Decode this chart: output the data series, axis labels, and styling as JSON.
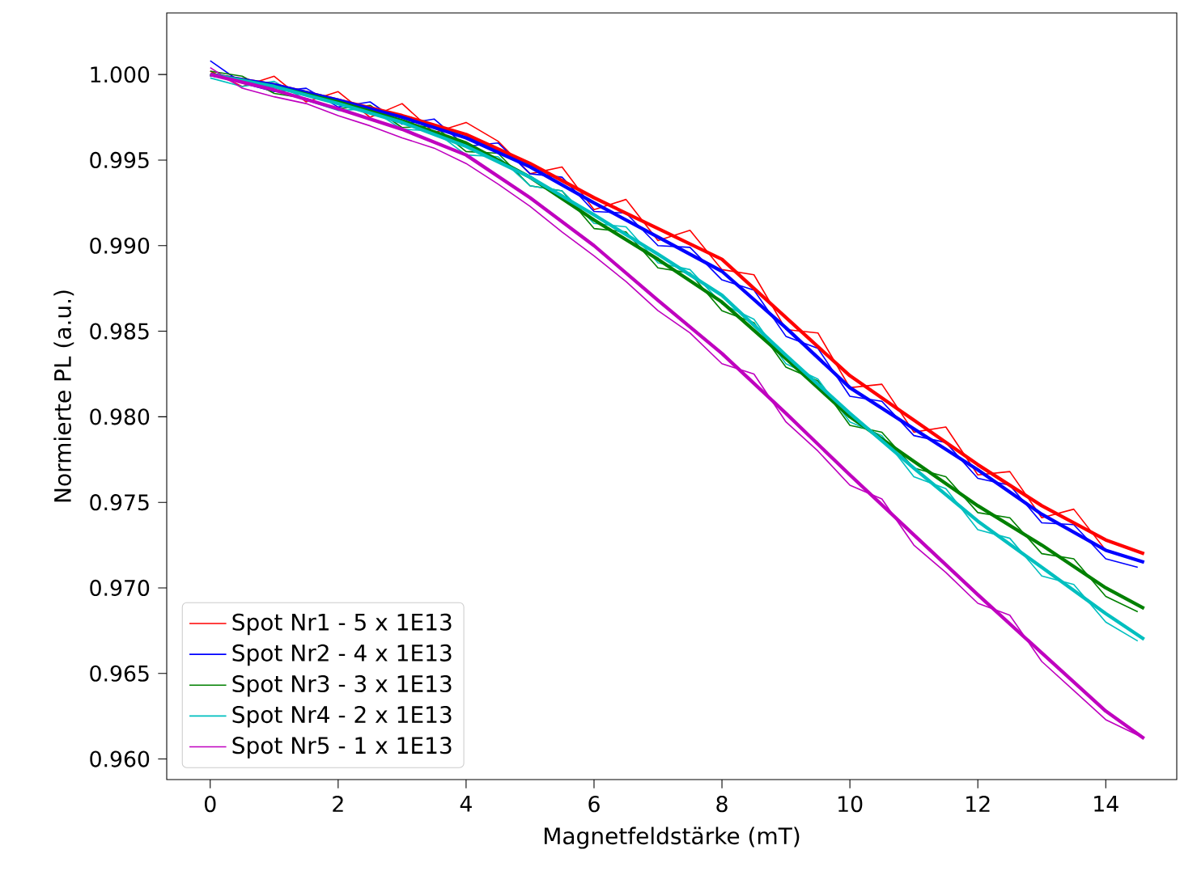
{
  "chart_data": {
    "type": "line",
    "xlabel": "Magnetfeldstärke (mT)",
    "ylabel": "Normierte PL (a.u.)",
    "xlim": [
      -0.68,
      15.11
    ],
    "ylim": [
      0.9588,
      1.0036
    ],
    "xticks": [
      0,
      2,
      4,
      6,
      8,
      10,
      12,
      14
    ],
    "yticks": [
      {
        "value": 0.96,
        "label": "0.960"
      },
      {
        "value": 0.965,
        "label": "0.965"
      },
      {
        "value": 0.97,
        "label": "0.970"
      },
      {
        "value": 0.975,
        "label": "0.975"
      },
      {
        "value": 0.98,
        "label": "0.980"
      },
      {
        "value": 0.985,
        "label": "0.985"
      },
      {
        "value": 0.99,
        "label": "0.990"
      },
      {
        "value": 0.995,
        "label": "0.995"
      },
      {
        "value": 1.0,
        "label": "1.000"
      }
    ],
    "legend": "bottom left",
    "grid": false,
    "x": [
      0,
      0.5,
      1,
      1.5,
      2,
      2.5,
      3,
      3.5,
      4,
      4.5,
      5,
      5.5,
      6,
      6.5,
      7,
      7.5,
      8,
      8.5,
      9,
      9.5,
      10,
      10.5,
      11,
      11.5,
      12,
      12.5,
      13,
      13.5,
      14,
      14.5
    ],
    "series": [
      {
        "name": "Spot Nr1 - 5 x 1E13",
        "color": "#ff0000",
        "values": [
          1.0002,
          0.9993,
          0.9999,
          0.9984,
          0.999,
          0.9975,
          0.9983,
          0.9966,
          0.9972,
          0.9961,
          0.9942,
          0.9946,
          0.9921,
          0.9927,
          0.9903,
          0.9909,
          0.9886,
          0.9883,
          0.9851,
          0.9849,
          0.9817,
          0.9819,
          0.9791,
          0.9794,
          0.9766,
          0.9768,
          0.9741,
          0.9746,
          0.9722,
          0.9716
        ]
      },
      {
        "name": "Spot Nr2 - 4 x 1E13",
        "color": "#0000ff",
        "values": [
          1.0008,
          0.9995,
          0.999,
          0.9992,
          0.9981,
          0.9984,
          0.9971,
          0.9974,
          0.9958,
          0.996,
          0.9942,
          0.994,
          0.992,
          0.9919,
          0.99,
          0.9899,
          0.988,
          0.9874,
          0.9847,
          0.984,
          0.9812,
          0.9809,
          0.9789,
          0.9785,
          0.9764,
          0.976,
          0.9738,
          0.9737,
          0.9717,
          0.9712
        ]
      },
      {
        "name": "Spot Nr3 - 3 x 1E13",
        "color": "#008000",
        "values": [
          1.0002,
          0.9999,
          0.9989,
          0.9986,
          0.998,
          0.9982,
          0.9969,
          0.997,
          0.9955,
          0.9954,
          0.9935,
          0.9932,
          0.991,
          0.9908,
          0.9887,
          0.9884,
          0.9862,
          0.9855,
          0.9829,
          0.9821,
          0.9795,
          0.9791,
          0.977,
          0.9765,
          0.9744,
          0.9741,
          0.972,
          0.9717,
          0.9695,
          0.9686
        ]
      },
      {
        "name": "Spot Nr4 - 2 x 1E13",
        "color": "#00bfbf",
        "values": [
          0.9998,
          0.9993,
          0.9996,
          0.9985,
          0.9979,
          0.998,
          0.9968,
          0.9967,
          0.9953,
          0.9952,
          0.9935,
          0.9932,
          0.9913,
          0.9911,
          0.989,
          0.9886,
          0.9866,
          0.9857,
          0.9831,
          0.9822,
          0.9797,
          0.9789,
          0.9765,
          0.9758,
          0.9734,
          0.9729,
          0.9707,
          0.9702,
          0.968,
          0.9669
        ]
      },
      {
        "name": "Spot Nr5 - 1 x 1E13",
        "color": "#bf00bf",
        "values": [
          1.0004,
          0.9992,
          0.9987,
          0.9983,
          0.9976,
          0.997,
          0.9963,
          0.9957,
          0.9948,
          0.9936,
          0.9923,
          0.9908,
          0.9894,
          0.9879,
          0.9862,
          0.9849,
          0.9831,
          0.9825,
          0.9797,
          0.978,
          0.976,
          0.9752,
          0.9725,
          0.9709,
          0.9691,
          0.9684,
          0.9657,
          0.964,
          0.9623,
          0.9614
        ]
      },
      {
        "type": "line",
        "color": "#ff0000",
        "x": [
          0,
          1,
          2,
          3,
          4,
          5,
          6,
          7,
          8,
          9,
          10,
          11,
          12,
          13,
          14,
          14.6
        ],
        "values": [
          1.0,
          0.9994,
          0.9985,
          0.9976,
          0.9965,
          0.9948,
          0.9928,
          0.991,
          0.9892,
          0.9858,
          0.9824,
          0.9798,
          0.9772,
          0.9748,
          0.9728,
          0.972
        ]
      },
      {
        "type": "line",
        "color": "#0000ff",
        "x": [
          0,
          1,
          2,
          3,
          4,
          5,
          6,
          7,
          8,
          9,
          10,
          11,
          12,
          13,
          14,
          14.6
        ],
        "values": [
          1.0,
          0.9994,
          0.9985,
          0.9975,
          0.9963,
          0.9946,
          0.9925,
          0.9905,
          0.9885,
          0.9852,
          0.9817,
          0.9793,
          0.9769,
          0.9743,
          0.9722,
          0.9715
        ]
      },
      {
        "type": "line",
        "color": "#008000",
        "x": [
          0,
          1,
          2,
          3,
          4,
          5,
          6,
          7,
          8,
          9,
          10,
          11,
          12,
          13,
          14,
          14.6
        ],
        "values": [
          1.0,
          0.9993,
          0.9984,
          0.9973,
          0.996,
          0.994,
          0.9915,
          0.9892,
          0.9867,
          0.9834,
          0.98,
          0.9774,
          0.9748,
          0.9725,
          0.97,
          0.9688
        ]
      },
      {
        "type": "line",
        "color": "#00bfbf",
        "x": [
          0,
          1,
          2,
          3,
          4,
          5,
          6,
          7,
          8,
          9,
          10,
          11,
          12,
          13,
          14,
          14.6
        ],
        "values": [
          1.0,
          0.9993,
          0.9983,
          0.9972,
          0.9958,
          0.994,
          0.9918,
          0.9895,
          0.9871,
          0.9836,
          0.9802,
          0.977,
          0.9739,
          0.9712,
          0.9685,
          0.967
        ]
      },
      {
        "type": "line",
        "color": "#bf00bf",
        "x": [
          0,
          1,
          2,
          3,
          4,
          5,
          6,
          7,
          8,
          9,
          10,
          11,
          12,
          13,
          14,
          14.6
        ],
        "values": [
          1.0,
          0.9991,
          0.998,
          0.9968,
          0.9953,
          0.9928,
          0.99,
          0.9868,
          0.9837,
          0.9802,
          0.9766,
          0.9731,
          0.9696,
          0.9662,
          0.9628,
          0.9612
        ]
      }
    ]
  }
}
